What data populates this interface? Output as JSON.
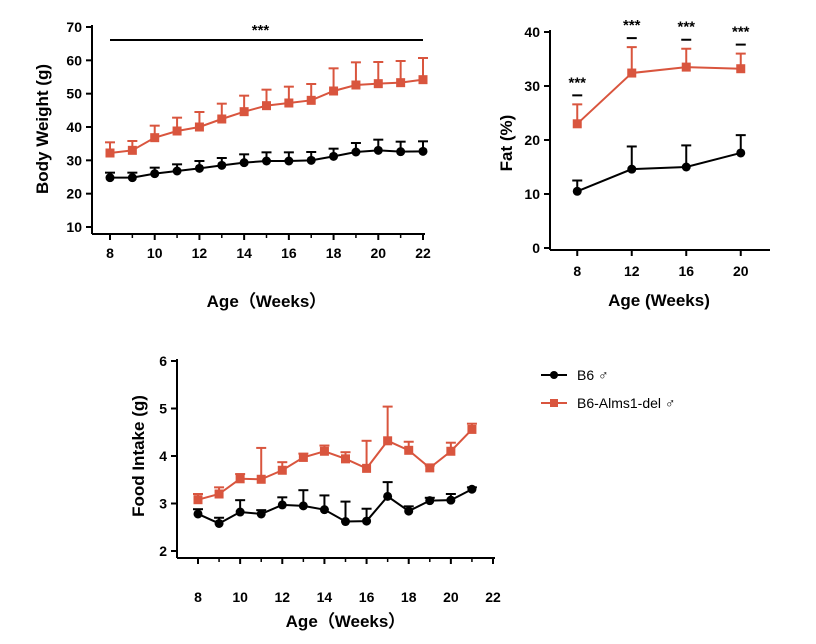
{
  "legend": {
    "entries": [
      {
        "name": "B6 ♂",
        "color": "#000000",
        "marker": "circle"
      },
      {
        "name": "B6-Alms1-del ♂",
        "color": "#d9553e",
        "marker": "square"
      }
    ]
  },
  "chart_data": [
    {
      "id": "body-weight",
      "type": "line",
      "title": "",
      "xlabel": "Age（Weeks）",
      "ylabel": "Body Weight (g)",
      "xlim": [
        8,
        22
      ],
      "ylim": [
        10,
        70
      ],
      "xticks": [
        "8",
        "10",
        "12",
        "14",
        "16",
        "18",
        "20",
        "22"
      ],
      "yticks": [
        "10",
        "20",
        "30",
        "40",
        "50",
        "60",
        "70"
      ],
      "significance": [
        {
          "label": "***",
          "x_from": 8,
          "x_to": 22
        }
      ],
      "series": [
        {
          "name": "B6 ♂",
          "color": "#000000",
          "marker": "circle",
          "x": [
            8,
            9,
            10,
            11,
            12,
            13,
            14,
            15,
            16,
            17,
            18,
            19,
            20,
            21,
            22
          ],
          "values": [
            24.8,
            24.8,
            26.0,
            26.8,
            27.6,
            28.5,
            29.3,
            29.8,
            29.8,
            30.0,
            31.2,
            32.5,
            33.0,
            32.6,
            32.7
          ],
          "errors": [
            1.5,
            1.5,
            1.8,
            2.0,
            2.2,
            2.2,
            2.5,
            2.6,
            2.6,
            2.5,
            2.3,
            2.7,
            3.2,
            3.0,
            3.0
          ]
        },
        {
          "name": "B6-Alms1-del ♂",
          "color": "#d9553e",
          "marker": "square",
          "x": [
            8,
            9,
            10,
            11,
            12,
            13,
            14,
            15,
            16,
            17,
            18,
            19,
            20,
            21,
            22
          ],
          "values": [
            32.2,
            33.0,
            36.8,
            38.8,
            40.0,
            42.4,
            44.6,
            46.4,
            47.2,
            48.0,
            50.8,
            52.6,
            53.0,
            53.3,
            54.2
          ],
          "errors": [
            3.2,
            2.8,
            3.6,
            4.0,
            4.5,
            4.6,
            4.8,
            4.8,
            4.9,
            4.9,
            6.8,
            6.8,
            6.5,
            6.5,
            6.5
          ]
        }
      ]
    },
    {
      "id": "fat",
      "type": "line",
      "title": "",
      "xlabel": "Age (Weeks)",
      "ylabel": "Fat (%)",
      "xlim": [
        6,
        22
      ],
      "ylim": [
        0,
        40
      ],
      "xticks": [
        "8",
        "12",
        "16",
        "20"
      ],
      "yticks": [
        "0",
        "10",
        "20",
        "30",
        "40"
      ],
      "significance": [
        {
          "label": "***",
          "x": 8
        },
        {
          "label": "***",
          "x": 12
        },
        {
          "label": "***",
          "x": 16
        },
        {
          "label": "***",
          "x": 20
        }
      ],
      "series": [
        {
          "name": "B6 ♂",
          "color": "#000000",
          "marker": "circle",
          "x": [
            8,
            12,
            16,
            20
          ],
          "values": [
            10.5,
            14.6,
            15.0,
            17.6
          ],
          "errors": [
            2.0,
            4.2,
            4.0,
            3.3
          ]
        },
        {
          "name": "B6-Alms1-del ♂",
          "color": "#d9553e",
          "marker": "square",
          "x": [
            8,
            12,
            16,
            20
          ],
          "values": [
            23.0,
            32.4,
            33.5,
            33.2
          ],
          "errors": [
            3.6,
            4.8,
            3.4,
            2.8
          ]
        }
      ]
    },
    {
      "id": "food-intake",
      "type": "line",
      "title": "",
      "xlabel": "Age（Weeks）",
      "ylabel": "Food Intake (g)",
      "xlim": [
        8,
        22
      ],
      "ylim": [
        2,
        6
      ],
      "xticks": [
        "8",
        "10",
        "12",
        "14",
        "16",
        "18",
        "20",
        "22"
      ],
      "yticks": [
        "2",
        "3",
        "4",
        "5",
        "6"
      ],
      "series": [
        {
          "name": "B6 ♂",
          "color": "#000000",
          "marker": "circle",
          "x": [
            8,
            9,
            10,
            11,
            12,
            13,
            14,
            15,
            16,
            17,
            18,
            19,
            20,
            21
          ],
          "values": [
            2.78,
            2.58,
            2.82,
            2.78,
            2.97,
            2.95,
            2.87,
            2.62,
            2.63,
            3.15,
            2.84,
            3.06,
            3.07,
            3.3
          ],
          "errors": [
            0.1,
            0.12,
            0.25,
            0.08,
            0.16,
            0.33,
            0.3,
            0.42,
            0.26,
            0.3,
            0.1,
            0.06,
            0.13,
            0.04
          ]
        },
        {
          "name": "B6-Alms1-del ♂",
          "color": "#d9553e",
          "marker": "square",
          "x": [
            8,
            9,
            10,
            11,
            12,
            13,
            14,
            15,
            16,
            17,
            18,
            19,
            20,
            21
          ],
          "values": [
            3.08,
            3.2,
            3.52,
            3.51,
            3.7,
            3.97,
            4.1,
            3.94,
            3.74,
            4.32,
            4.12,
            3.75,
            4.1,
            4.56
          ],
          "errors": [
            0.12,
            0.14,
            0.1,
            0.66,
            0.17,
            0.08,
            0.12,
            0.14,
            0.58,
            0.72,
            0.18,
            0.05,
            0.18,
            0.12
          ]
        }
      ]
    }
  ]
}
